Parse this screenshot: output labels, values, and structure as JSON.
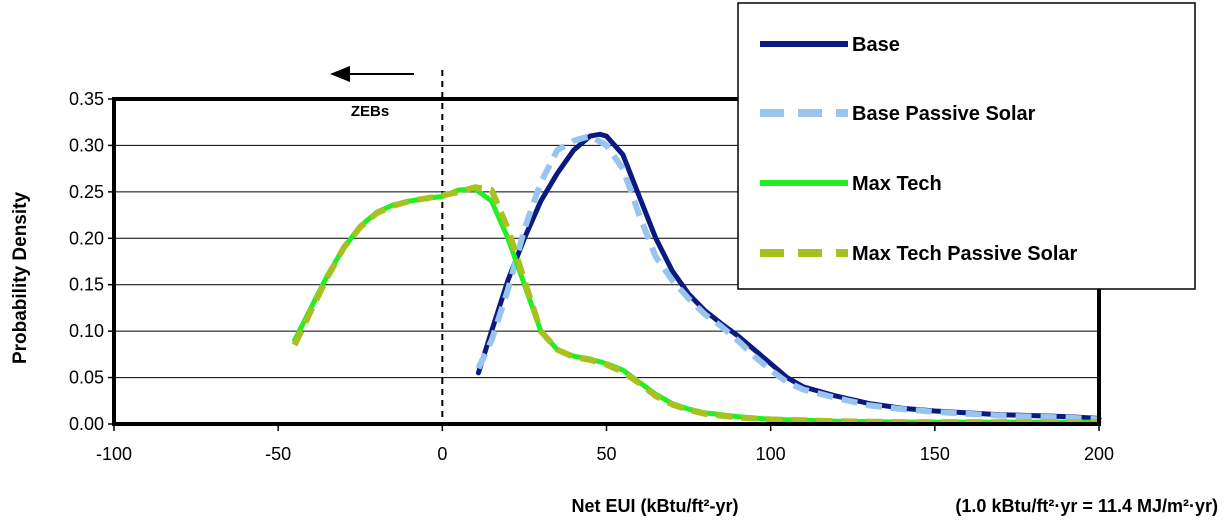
{
  "chart_data": {
    "type": "line",
    "title": "",
    "xlabel": "Net EUI (kBtu/ft²-yr)",
    "ylabel": "Probability Density",
    "note": "(1.0 kBtu/ft²·yr = 11.4 MJ/m²·yr)",
    "annotation": "ZEBs",
    "xlim": [
      -100,
      200
    ],
    "ylim": [
      0,
      0.35
    ],
    "xticks": [
      "-100",
      "-50",
      "0",
      "50",
      "100",
      "150",
      "200"
    ],
    "yticks": [
      "0.00",
      "0.05",
      "0.10",
      "0.15",
      "0.20",
      "0.25",
      "0.30",
      "0.35"
    ],
    "grid": true,
    "legend_position": "top-right",
    "reference_line_x": 0,
    "series": [
      {
        "name": "Base",
        "color": "#0a1a80",
        "dash": "solid",
        "x": [
          11,
          15,
          20,
          25,
          30,
          35,
          40,
          45,
          48,
          50,
          55,
          60,
          65,
          70,
          75,
          80,
          85,
          90,
          95,
          100,
          105,
          110,
          120,
          130,
          140,
          150,
          160,
          170,
          180,
          190,
          200
        ],
        "y": [
          0.055,
          0.1,
          0.155,
          0.2,
          0.24,
          0.27,
          0.295,
          0.31,
          0.312,
          0.31,
          0.29,
          0.245,
          0.2,
          0.165,
          0.14,
          0.122,
          0.108,
          0.095,
          0.08,
          0.065,
          0.05,
          0.04,
          0.03,
          0.022,
          0.017,
          0.014,
          0.012,
          0.01,
          0.009,
          0.008,
          0.006
        ]
      },
      {
        "name": "Base Passive Solar",
        "color": "#99c4f0",
        "dash": "dashed",
        "x": [
          11,
          15,
          20,
          25,
          30,
          35,
          40,
          45,
          50,
          55,
          60,
          65,
          70,
          75,
          80,
          85,
          90,
          95,
          100,
          105,
          110,
          120,
          130,
          140,
          150,
          160,
          170,
          180,
          190,
          200
        ],
        "y": [
          0.06,
          0.09,
          0.145,
          0.21,
          0.26,
          0.295,
          0.305,
          0.31,
          0.3,
          0.275,
          0.225,
          0.18,
          0.155,
          0.135,
          0.118,
          0.105,
          0.09,
          0.073,
          0.058,
          0.045,
          0.037,
          0.028,
          0.02,
          0.016,
          0.013,
          0.011,
          0.009,
          0.008,
          0.007,
          0.005
        ]
      },
      {
        "name": "Max Tech",
        "color": "#22ee22",
        "dash": "solid",
        "x": [
          -45,
          -40,
          -35,
          -30,
          -25,
          -20,
          -15,
          -10,
          -5,
          0,
          5,
          10,
          15,
          20,
          25,
          30,
          35,
          40,
          45,
          50,
          55,
          60,
          65,
          70,
          75,
          80,
          90,
          100,
          110,
          120,
          140,
          160,
          180,
          200
        ],
        "y": [
          0.09,
          0.125,
          0.16,
          0.19,
          0.213,
          0.228,
          0.236,
          0.24,
          0.243,
          0.245,
          0.252,
          0.253,
          0.24,
          0.2,
          0.15,
          0.1,
          0.08,
          0.073,
          0.07,
          0.065,
          0.058,
          0.045,
          0.032,
          0.022,
          0.016,
          0.012,
          0.008,
          0.005,
          0.004,
          0.003,
          0.002,
          0.002,
          0.002,
          0.002
        ]
      },
      {
        "name": "Max Tech Passive Solar",
        "color": "#a8c020",
        "dash": "dashed",
        "x": [
          -45,
          -40,
          -35,
          -30,
          -25,
          -20,
          -15,
          -10,
          -5,
          0,
          5,
          10,
          15,
          20,
          25,
          30,
          35,
          40,
          45,
          50,
          55,
          60,
          65,
          70,
          75,
          80,
          90,
          100,
          110,
          120,
          140,
          160,
          180,
          200
        ],
        "y": [
          0.085,
          0.122,
          0.158,
          0.19,
          0.212,
          0.227,
          0.235,
          0.24,
          0.243,
          0.246,
          0.25,
          0.255,
          0.252,
          0.21,
          0.155,
          0.1,
          0.08,
          0.072,
          0.069,
          0.064,
          0.056,
          0.044,
          0.03,
          0.021,
          0.015,
          0.011,
          0.007,
          0.005,
          0.004,
          0.003,
          0.002,
          0.002,
          0.002,
          0.002
        ]
      }
    ]
  }
}
